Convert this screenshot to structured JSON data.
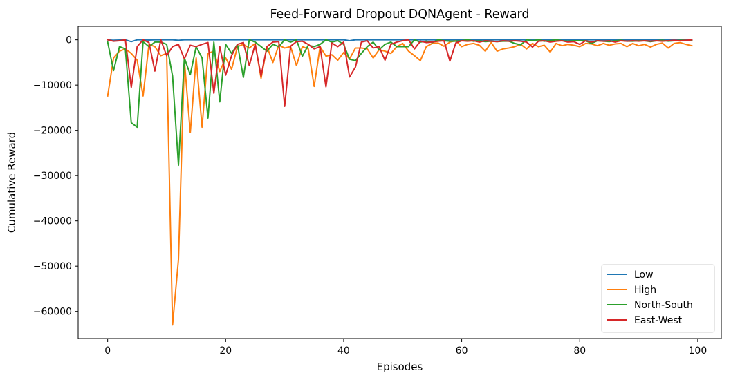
{
  "chart_data": {
    "type": "line",
    "title": "Feed-Forward Dropout DQNAgent - Reward",
    "xlabel": "Episodes",
    "ylabel": "Cumulative Reward",
    "xlim": [
      -5,
      104
    ],
    "ylim": [
      -66000,
      3000
    ],
    "xticks": [
      0,
      20,
      40,
      60,
      80,
      100
    ],
    "yticks": [
      0,
      -10000,
      -20000,
      -30000,
      -40000,
      -50000,
      -60000
    ],
    "xtick_labels": [
      "0",
      "20",
      "40",
      "60",
      "80",
      "100"
    ],
    "ytick_labels": [
      "0",
      "−10000",
      "−20000",
      "−30000",
      "−40000",
      "−50000",
      "−60000"
    ],
    "grid": false,
    "legend_position": "lower-right",
    "x": [
      0,
      1,
      2,
      3,
      4,
      5,
      6,
      7,
      8,
      9,
      10,
      11,
      12,
      13,
      14,
      15,
      16,
      17,
      18,
      19,
      20,
      21,
      22,
      23,
      24,
      25,
      26,
      27,
      28,
      29,
      30,
      31,
      32,
      33,
      34,
      35,
      36,
      37,
      38,
      39,
      40,
      41,
      42,
      43,
      44,
      45,
      46,
      47,
      48,
      49,
      50,
      51,
      52,
      53,
      54,
      55,
      56,
      57,
      58,
      59,
      60,
      61,
      62,
      63,
      64,
      65,
      66,
      67,
      68,
      69,
      70,
      71,
      72,
      73,
      74,
      75,
      76,
      77,
      78,
      79,
      80,
      81,
      82,
      83,
      84,
      85,
      86,
      87,
      88,
      89,
      90,
      91,
      92,
      93,
      94,
      95,
      96,
      97,
      98,
      99
    ],
    "series": [
      {
        "name": "Low",
        "color": "#1f77b4",
        "values": [
          0,
          -100,
          -50,
          0,
          -400,
          0,
          0,
          -50,
          0,
          0,
          0,
          0,
          -100,
          0,
          0,
          0,
          0,
          0,
          0,
          0,
          0,
          0,
          0,
          0,
          0,
          0,
          0,
          0,
          0,
          0,
          0,
          0,
          0,
          0,
          0,
          0,
          0,
          0,
          0,
          0,
          0,
          -200,
          0,
          0,
          0,
          0,
          0,
          0,
          0,
          0,
          0,
          0,
          0,
          0,
          0,
          0,
          0,
          0,
          0,
          0,
          0,
          0,
          0,
          0,
          0,
          0,
          0,
          0,
          0,
          0,
          0,
          0,
          0,
          0,
          0,
          0,
          0,
          0,
          0,
          0,
          0,
          0,
          0,
          0,
          0,
          0,
          0,
          0,
          0,
          0,
          0,
          0,
          0,
          0,
          0,
          0,
          0,
          0,
          0,
          0
        ]
      },
      {
        "name": "High",
        "color": "#ff7f0e",
        "values": [
          -12400,
          -4000,
          -2500,
          -2000,
          -3000,
          -4500,
          -12400,
          -1000,
          -1500,
          -3500,
          -3000,
          -63000,
          -48500,
          -4500,
          -20500,
          -4000,
          -19300,
          -3000,
          -2500,
          -7000,
          -4000,
          -6500,
          -1500,
          -1000,
          -1800,
          -800,
          -8500,
          -1500,
          -5000,
          -1200,
          -1800,
          -1500,
          -5700,
          -1500,
          -2000,
          -10300,
          -1500,
          -3600,
          -3300,
          -4500,
          -2800,
          -4200,
          -1800,
          -1800,
          -2000,
          -4000,
          -2200,
          -2500,
          -3000,
          -1500,
          -800,
          -2500,
          -3500,
          -4600,
          -1500,
          -800,
          -700,
          -1400,
          -500,
          -200,
          -1500,
          -1000,
          -800,
          -1200,
          -2500,
          -600,
          -2500,
          -2000,
          -1800,
          -1500,
          -1000,
          -2000,
          -800,
          -1500,
          -1200,
          -2700,
          -800,
          -1300,
          -1000,
          -1200,
          -1500,
          -800,
          -900,
          -1300,
          -800,
          -1200,
          -900,
          -800,
          -1500,
          -800,
          -1300,
          -1000,
          -1600,
          -1000,
          -700,
          -1800,
          -800,
          -600,
          -1000,
          -1300
        ]
      },
      {
        "name": "North-South",
        "color": "#2ca02c",
        "values": [
          -500,
          -6800,
          -1500,
          -2000,
          -18300,
          -19300,
          -400,
          -1500,
          -500,
          -500,
          -1000,
          -8000,
          -27700,
          -4000,
          -7700,
          -1500,
          -4000,
          -17300,
          -500,
          -13700,
          -1000,
          -3000,
          -1000,
          -8300,
          0,
          -500,
          -1500,
          -2500,
          -1000,
          -1500,
          0,
          -500,
          0,
          -3600,
          -1200,
          -1500,
          -1000,
          0,
          -500,
          -200,
          -1000,
          -4300,
          -4600,
          -3000,
          -1500,
          -500,
          -2200,
          -1000,
          -500,
          -1500,
          -1500,
          -1500,
          0,
          -500,
          -300,
          -600,
          0,
          -200,
          -300,
          -300,
          -200,
          0,
          -300,
          -200,
          -400,
          -300,
          -400,
          -300,
          -300,
          -800,
          -1100,
          0,
          -200,
          0,
          -300,
          -200,
          0,
          -200,
          -300,
          -200,
          -200,
          -200,
          -800,
          -200,
          -300,
          -400,
          -200,
          -100,
          -300,
          -300,
          -200,
          -200,
          -400,
          -200,
          -100,
          -300,
          -200,
          -100,
          -100,
          -200
        ]
      },
      {
        "name": "East-West",
        "color": "#d62728",
        "values": [
          0,
          -300,
          -200,
          0,
          -10500,
          -1500,
          0,
          -600,
          -6900,
          0,
          -3500,
          -1500,
          -1000,
          -4200,
          -1200,
          -1500,
          -1000,
          -600,
          -11800,
          -1500,
          -7800,
          -3500,
          -1000,
          -600,
          -5700,
          -1000,
          -8000,
          -1500,
          -500,
          -400,
          -14700,
          -1400,
          -400,
          -300,
          -1000,
          -2000,
          -1500,
          -10400,
          -700,
          -1500,
          -500,
          -8200,
          -6000,
          -500,
          -200,
          -1800,
          -1500,
          -4500,
          -1000,
          -500,
          -200,
          0,
          -2000,
          -300,
          -600,
          -500,
          -300,
          -200,
          -4700,
          -700,
          -200,
          -300,
          -200,
          -500,
          -200,
          -300,
          -400,
          -200,
          -300,
          -200,
          -300,
          -500,
          -1600,
          -300,
          -200,
          -500,
          -300,
          -200,
          -500,
          -400,
          -1000,
          -200,
          -500,
          -200,
          -300,
          -200,
          -500,
          -200,
          -300,
          -200,
          -300,
          -200,
          -300,
          -200,
          -300,
          -200,
          -100,
          -200,
          -100,
          0
        ]
      }
    ]
  }
}
